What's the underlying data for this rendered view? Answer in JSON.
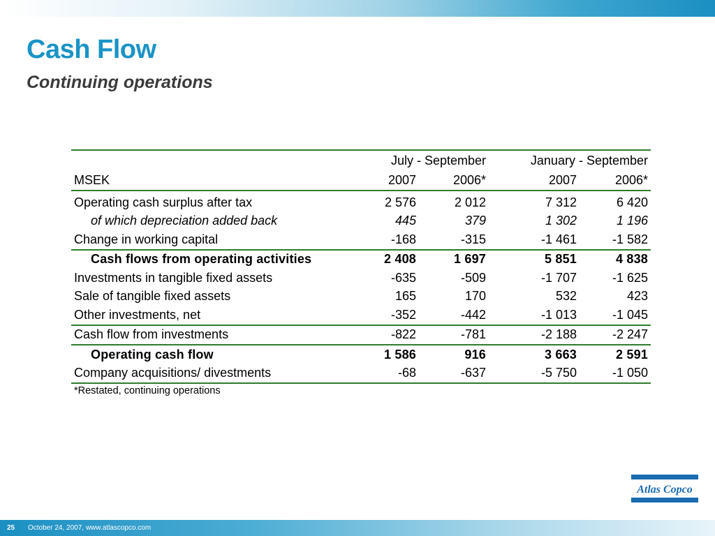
{
  "slide": {
    "title": "Cash Flow",
    "subtitle": "Continuing operations",
    "page_number": "25",
    "footer": "October 24, 2007, www.atlascopco.com",
    "footnote": "*Restated, continuing operations",
    "logo_text": "Atlas Copco",
    "colors": {
      "title": "#1a93c6",
      "rule": "#2e7d2e",
      "brand": "#1a6bb0"
    }
  },
  "table": {
    "period_headers": [
      "July - September",
      "January - September"
    ],
    "unit_label": "MSEK",
    "year_headers": [
      "2007",
      "2006*",
      "2007",
      "2006*"
    ],
    "rows": [
      {
        "label": "Operating cash surplus after tax",
        "values": [
          "2 576",
          "2 012",
          "7 312",
          "6 420"
        ]
      },
      {
        "label": "of which depreciation added back",
        "values": [
          "445",
          "379",
          "1 302",
          "1 196"
        ]
      },
      {
        "label": "Change in working capital",
        "values": [
          "-168",
          "-315",
          "-1 461",
          "-1 582"
        ]
      },
      {
        "label": "Cash flows from operating activities",
        "values": [
          "2 408",
          "1 697",
          "5 851",
          "4 838"
        ]
      },
      {
        "label": "Investments in tangible fixed assets",
        "values": [
          "-635",
          "-509",
          "-1 707",
          "-1 625"
        ]
      },
      {
        "label": "Sale of tangible fixed assets",
        "values": [
          "165",
          "170",
          "532",
          "423"
        ]
      },
      {
        "label": "Other investments, net",
        "values": [
          "-352",
          "-442",
          "-1 013",
          "-1 045"
        ]
      },
      {
        "label": "Cash flow from investments",
        "values": [
          "-822",
          "-781",
          "-2 188",
          "-2 247"
        ]
      },
      {
        "label": "Operating cash flow",
        "values": [
          "1 586",
          "916",
          "3 663",
          "2 591"
        ]
      },
      {
        "label": "Company acquisitions/ divestments",
        "values": [
          "-68",
          "-637",
          "-5 750",
          "-1 050"
        ]
      }
    ]
  }
}
